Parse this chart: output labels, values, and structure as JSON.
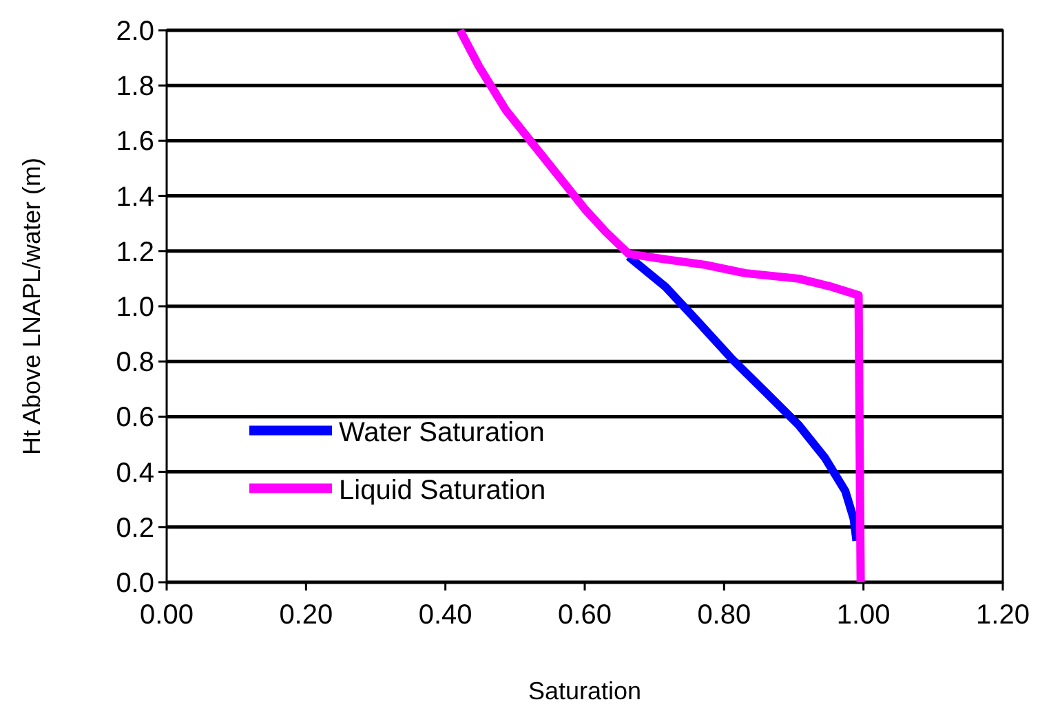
{
  "chart_data": {
    "type": "line",
    "xlabel": "Saturation",
    "ylabel": "Ht Above LNAPL/water (m)",
    "xlim": [
      0,
      1.2
    ],
    "xticks": [
      {
        "value": 0,
        "label": "0.00"
      },
      {
        "value": 0.2,
        "label": "0.20"
      },
      {
        "value": 0.4,
        "label": "0.40"
      },
      {
        "value": 0.6,
        "label": "0.60"
      },
      {
        "value": 0.8,
        "label": "0.80"
      },
      {
        "value": 1,
        "label": "1.00"
      },
      {
        "value": 1.2,
        "label": "1.20"
      }
    ],
    "ylim": [
      0,
      2
    ],
    "yticks": [
      {
        "value": 0,
        "label": "0.0"
      },
      {
        "value": 0.2,
        "label": "0.2"
      },
      {
        "value": 0.4,
        "label": "0.4"
      },
      {
        "value": 0.6,
        "label": "0.6"
      },
      {
        "value": 0.8,
        "label": "0.8"
      },
      {
        "value": 1,
        "label": "1.0"
      },
      {
        "value": 1.2,
        "label": "1.2"
      },
      {
        "value": 1.4,
        "label": "1.4"
      },
      {
        "value": 1.6,
        "label": "1.6"
      },
      {
        "value": 1.8,
        "label": "1.8"
      },
      {
        "value": 2,
        "label": "2.0"
      }
    ],
    "grid": "y",
    "legend": "bottom left",
    "line_style": "solid",
    "series": [
      {
        "name": "Water Saturation",
        "color": "#0000ff",
        "x": [
          0.663,
          0.716,
          0.764,
          0.811,
          0.859,
          0.907,
          0.945,
          0.974,
          0.986,
          0.99
        ],
        "values": [
          1.18,
          1.07,
          0.94,
          0.81,
          0.69,
          0.57,
          0.45,
          0.33,
          0.23,
          0.15
        ]
      },
      {
        "name": "Liquid Saturation",
        "color": "#ff00ff",
        "x": [
          0.421,
          0.448,
          0.487,
          0.525,
          0.563,
          0.601,
          0.63,
          0.663,
          0.716,
          0.773,
          0.83,
          0.907,
          0.955,
          0.993,
          0.996
        ],
        "values": [
          2.0,
          1.87,
          1.71,
          1.59,
          1.47,
          1.35,
          1.27,
          1.19,
          1.17,
          1.15,
          1.12,
          1.1,
          1.07,
          1.04,
          0
        ]
      }
    ]
  }
}
